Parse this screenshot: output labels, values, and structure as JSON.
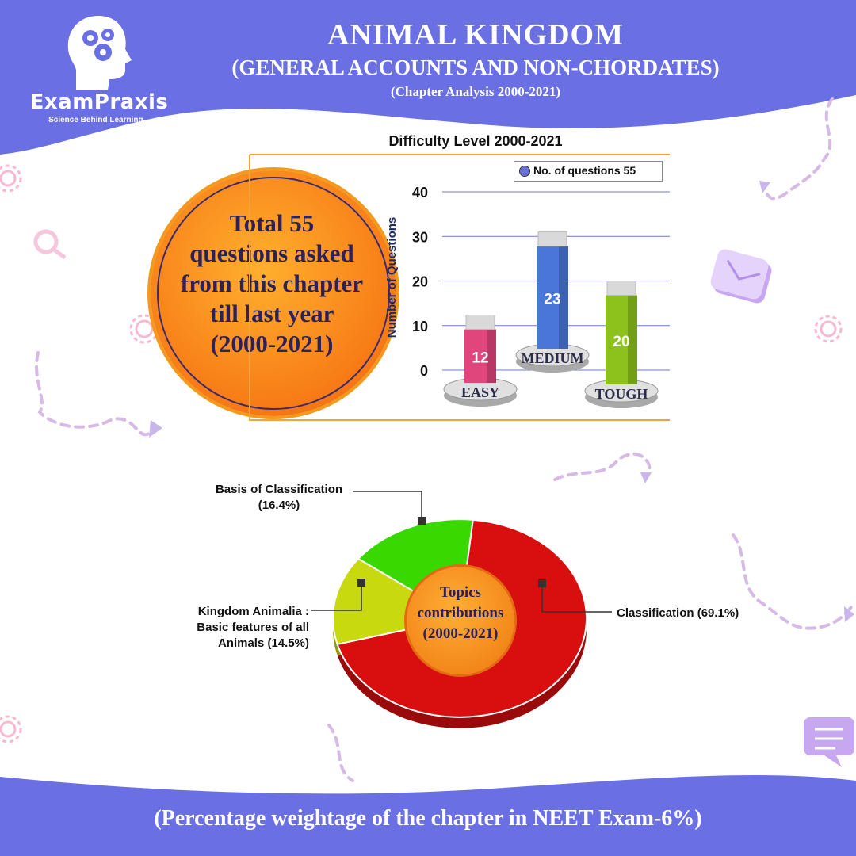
{
  "brand": {
    "name": "ExamPraxis",
    "tagline": "Science Behind Learning..."
  },
  "header": {
    "title": "ANIMAL KINGDOM",
    "subtitle": "(GENERAL ACCOUNTS AND NON-CHORDATES)",
    "subsubtitle": "(Chapter Analysis 2000-2021)"
  },
  "summary": {
    "line1": "Total 55",
    "line2": "questions asked",
    "line3": "from this chapter",
    "line4": "till last year",
    "line5": "(2000-2021)"
  },
  "colors": {
    "band": "#6a6fe3",
    "orange": "#f4891a",
    "easy": "#e0457b",
    "medium": "#4a76d9",
    "tough": "#8dc21d",
    "pie_red": "#d90e0e",
    "pie_green": "#39d800",
    "pie_yellow": "#c9d90f"
  },
  "chart_data": [
    {
      "type": "bar",
      "title": "Difficulty Level 2000-2021",
      "ylabel": "Number of Questions",
      "categories": [
        "EASY",
        "MEDIUM",
        "TOUGH"
      ],
      "series": [
        {
          "name": "No. of questions 55",
          "values": [
            12,
            23,
            20
          ]
        }
      ],
      "yticks": [
        "0",
        "10",
        "20",
        "30",
        "40"
      ],
      "ylim": [
        0,
        40
      ],
      "grid": true,
      "legend": "top-right"
    },
    {
      "type": "pie",
      "title": "Topics contributions (2000-2021)",
      "labels": [
        "Classification (69.1%)",
        "Kingdom Animalia : Basic features of all Animals (14.5%)",
        "Basis of Classification (16.4%)"
      ],
      "values": [
        69.1,
        14.5,
        16.4
      ]
    }
  ],
  "pie_text": {
    "center_line1": "Topics",
    "center_line2": "contributions",
    "center_line3": "(2000-2021)",
    "basis_line1": "Basis of Classification",
    "basis_line2": "(16.4%)",
    "kingdom_line1": "Kingdom Animalia :",
    "kingdom_line2": "Basic features of all",
    "kingdom_line3": "Animals (14.5%)",
    "classification": "Classification (69.1%)"
  },
  "footer": {
    "text": "(Percentage weightage of the chapter in NEET Exam-6%)"
  }
}
